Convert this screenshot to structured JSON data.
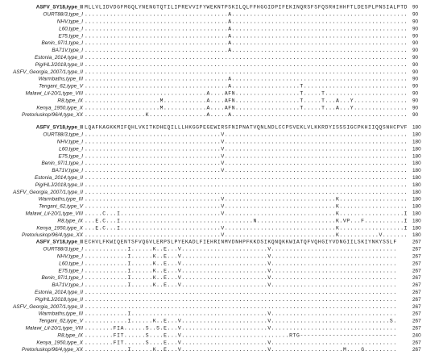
{
  "names": [
    "ASFV_SY18,type_II",
    "OURT88/3,type_I",
    "NHV,type_I",
    "L60,type_I",
    "E75,type_I",
    "Benin_97/1,type_I",
    "BA71V,type_I",
    "Estonia_2014,type_II",
    "Pig/HLJ/2018,type_II",
    "ASFV_Georgia_2007/1,type_II",
    "Warmbaths,type_III",
    "Tengani_62,type_V",
    "Malawi_Lil-20/1,type_VIII",
    "R8,type_IX",
    "Kenya_1950,type_X",
    "Pretoriuskop/96/4,type_XX"
  ],
  "blocks": [
    {
      "rows": [
        {
          "seq": "MLLVLIDVDGFMGQLYNENGTQTILIPREVVIFYWEKNTPSKILQLFFHGGIDPIFEKINQRSFSFQSRHIHHFTLDESPLPNSIALPTD",
          "end": 90
        },
        {
          "seq": "........................................A.................................................",
          "end": 90
        },
        {
          "seq": "........................................A.................................................",
          "end": 90
        },
        {
          "seq": "........................................A.................................................",
          "end": 90
        },
        {
          "seq": "........................................A.................................................",
          "end": 90
        },
        {
          "seq": "........................................A.................................................",
          "end": 90
        },
        {
          "seq": "........................................A.................................................",
          "end": 90
        },
        {
          "seq": "..........................................................................................",
          "end": 90
        },
        {
          "seq": "..........................................................................................",
          "end": 90
        },
        {
          "seq": "..........................................................................................",
          "end": 90
        },
        {
          "seq": "........................................A.................................................",
          "end": 90
        },
        {
          "seq": "........................................A...................T.............................",
          "end": 90
        },
        {
          "seq": "..................................A....AFN..................T.....T.......................",
          "end": 90
        },
        {
          "seq": ".....................M............A....AFN..................T.....T...A...Y...............",
          "end": 90
        },
        {
          "seq": ".....................M............A....AFN..................T.....T...A...Y...............",
          "end": 90
        },
        {
          "seq": ".................K................A.....A.................................................",
          "end": 90
        }
      ]
    },
    {
      "rows": [
        {
          "seq": "LQAFKAGKKMIFQHLVKITKDHEQILLLHKGGPEGEWIRSFNIPNATVQNLNDLCCPSVEKLVLKKRDYISSSIGCPKHIIQQSNHCPVF",
          "end": 180
        },
        {
          "seq": "......................................V...................................................",
          "end": 180
        },
        {
          "seq": "......................................V...................................................",
          "end": 180
        },
        {
          "seq": "......................................V...................................................",
          "end": 180
        },
        {
          "seq": "......................................V...................................................",
          "end": 180
        },
        {
          "seq": "......................................V...................................................",
          "end": 180
        },
        {
          "seq": "......................................V...................................................",
          "end": 180
        },
        {
          "seq": "..........................................................................................",
          "end": 180
        },
        {
          "seq": "..........................................................................................",
          "end": 180
        },
        {
          "seq": "..........................................................................................",
          "end": 180
        },
        {
          "seq": "......................................V...............................K...................",
          "end": 180
        },
        {
          "seq": "......................................V...............................K...................",
          "end": 180
        },
        {
          "seq": ".....C...I............................V...............................K..................I",
          "end": 180
        },
        {
          "seq": "...E.C...I.....................................N......................K.VP...F...........I",
          "end": 180
        },
        {
          "seq": "...E.C...I............................V...............................K..................I",
          "end": 180
        },
        {
          "seq": "......................................V...............................K...........V.......",
          "end": 180
        }
      ]
    },
    {
      "rows": [
        {
          "seq": "ECHVLFKWIQENTSFVQGVLERPSLPYEKADLFIEHRINMVDNHPFKKDSIKQNQKKWIATQFVQHGIYVDNGIILSKIYNKYSSLF",
          "end": 267
        },
        {
          "seq": "............I......K..E...V........................V...................................",
          "end": 267
        },
        {
          "seq": "............I......K..E...V........................V...................................",
          "end": 267
        },
        {
          "seq": "............I......K..E...V........................V...................................",
          "end": 267
        },
        {
          "seq": "............I......K..E...V........................V...................................",
          "end": 267
        },
        {
          "seq": "............I......K..E...V........................V...................................",
          "end": 267
        },
        {
          "seq": "............I......K..E...V........................V...................................",
          "end": 267
        },
        {
          "seq": ".......................................................................................",
          "end": 267
        },
        {
          "seq": ".......................................................................................",
          "end": 267
        },
        {
          "seq": ".......................................................................................",
          "end": 267
        },
        {
          "seq": "............I......................................V...................................",
          "end": 267
        },
        {
          "seq": "............I......K..E...V........................V.................................S.",
          "end": 267
        },
        {
          "seq": "........FIA......S..S.E...V........................V...................................",
          "end": 267
        },
        {
          "seq": "........FIT......S....E...V..............................RTG---------------------------",
          "end": 240
        },
        {
          "seq": "........FIT......S....E...V........................V...................................",
          "end": 267
        },
        {
          "seq": "............I......K..E...V........................V....................M....G.........",
          "end": 267
        }
      ]
    }
  ]
}
